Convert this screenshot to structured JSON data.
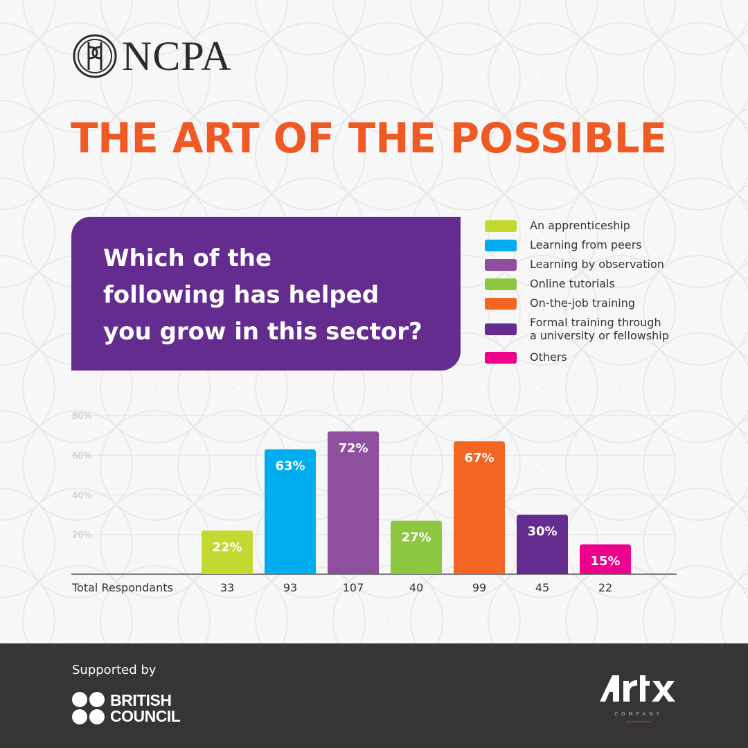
{
  "brand": {
    "logo_text": "NCPA",
    "headline": "THE ART OF THE POSSIBLE"
  },
  "question": {
    "lines": [
      "Which of the",
      "following has helped",
      "you grow in this sector?"
    ]
  },
  "legend": [
    {
      "label": "An apprenticeship",
      "color": "#c3d830"
    },
    {
      "label": "Learning from peers",
      "color": "#00aeef"
    },
    {
      "label": "Learning by observation",
      "color": "#8e4f9f"
    },
    {
      "label": "Online tutorials",
      "color": "#8dc63f"
    },
    {
      "label": "On-the-job training",
      "color": "#f26522"
    },
    {
      "label": "Formal training through a university or fellowship",
      "label_lines": [
        "Formal training through",
        "a university or fellowship"
      ],
      "color": "#652c90"
    },
    {
      "label": "Others",
      "color": "#ec008c"
    }
  ],
  "chart_data": {
    "type": "bar",
    "categories": [
      "An apprenticeship",
      "Learning from peers",
      "Learning by observation",
      "Online tutorials",
      "On-the-job training",
      "Formal training through a university or fellowship",
      "Others"
    ],
    "values": [
      22,
      63,
      72,
      27,
      67,
      30,
      15
    ],
    "value_labels": [
      "22%",
      "63%",
      "72%",
      "27%",
      "67%",
      "30%",
      "15%"
    ],
    "colors": [
      "#c3d830",
      "#00aeef",
      "#8e4f9f",
      "#8dc63f",
      "#f26522",
      "#652c90",
      "#ec008c"
    ],
    "respondents_label": "Total Respondants",
    "respondents": [
      "33",
      "93",
      "107",
      "40",
      "99",
      "45",
      "22"
    ],
    "yticks": [
      "80%",
      "60%",
      "40%",
      "20%"
    ],
    "ytick_values": [
      80,
      60,
      40,
      20
    ],
    "ylim": [
      0,
      80
    ],
    "grid": true
  },
  "footer": {
    "supported_by": "Supported by",
    "bc_line1": "BRITISH",
    "bc_line2": "COUNCIL",
    "artx_text": "ARTX",
    "artx_sub": "COMPANY"
  }
}
